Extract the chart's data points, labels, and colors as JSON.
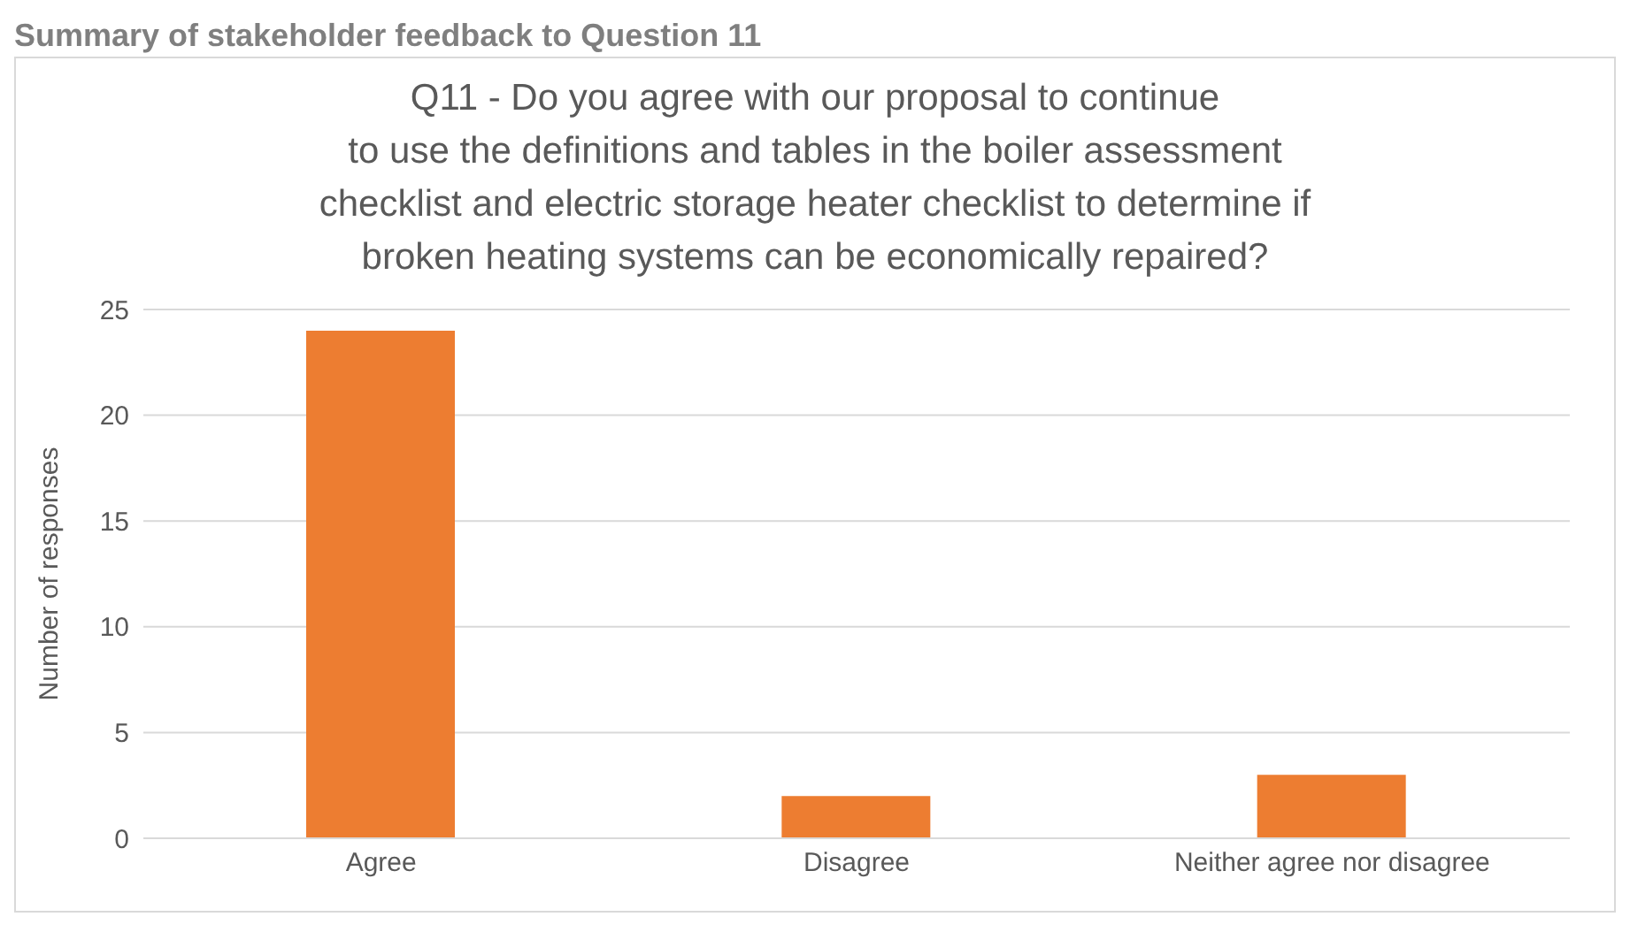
{
  "chart_data": {
    "type": "bar",
    "title": "Q11 - Do you agree with our proposal to continue\nto use the definitions and tables in the boiler assessment checklist and electric storage heater checklist to determine if broken heating systems can be economically repaired?",
    "annotations": [
      "Summary of stakeholder feedback to Question 11"
    ],
    "ylabel": "Number of responses",
    "categories": [
      "Agree",
      "Disagree",
      "Neither agree nor disagree"
    ],
    "values": [
      24,
      2,
      3
    ],
    "color": "#ed7d31",
    "ylim": [
      0,
      25
    ],
    "yticks": [
      0,
      5,
      10,
      15,
      20,
      25
    ],
    "grid": "y"
  }
}
